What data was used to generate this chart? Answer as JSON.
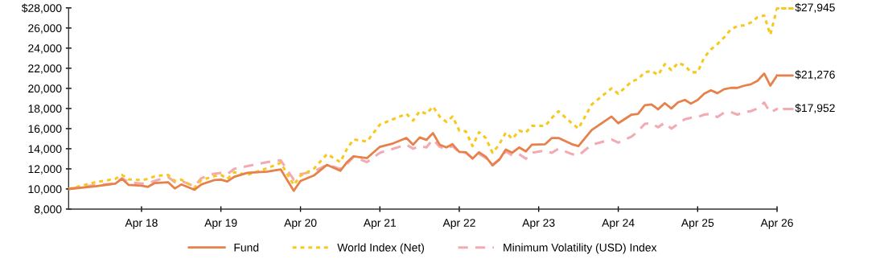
{
  "chart_data": {
    "type": "line",
    "x": [
      "2017-05",
      "2017-09",
      "2017-12",
      "2018-01",
      "2018-02",
      "2018-04",
      "2018-05",
      "2018-06",
      "2018-08",
      "2018-09",
      "2018-10",
      "2018-12",
      "2019-01",
      "2019-03",
      "2019-04",
      "2019-05",
      "2019-06",
      "2019-08",
      "2019-11",
      "2020-01",
      "2020-03",
      "2020-04",
      "2020-06",
      "2020-08",
      "2020-10",
      "2020-11",
      "2020-12",
      "2021-02",
      "2021-04",
      "2021-06",
      "2021-08",
      "2021-09",
      "2021-10",
      "2021-11",
      "2021-12",
      "2022-01",
      "2022-02",
      "2022-03",
      "2022-04",
      "2022-05",
      "2022-06",
      "2022-07",
      "2022-08",
      "2022-09",
      "2022-10",
      "2022-11",
      "2022-12",
      "2023-01",
      "2023-02",
      "2023-03",
      "2023-05",
      "2023-06",
      "2023-07",
      "2023-09",
      "2023-10",
      "2023-12",
      "2024-03",
      "2024-04",
      "2024-06",
      "2024-07",
      "2024-08",
      "2024-09",
      "2024-10",
      "2024-11",
      "2024-12",
      "2025-01",
      "2025-02",
      "2025-03",
      "2025-04",
      "2025-05",
      "2025-06",
      "2025-07",
      "2025-08",
      "2025-09",
      "2025-10",
      "2025-11",
      "2025-12",
      "2026-01",
      "2026-02",
      "2026-03",
      "2026-04"
    ],
    "series": [
      {
        "name": "Fund",
        "color": "#e8804a",
        "line_style": "solid",
        "values": [
          10000,
          10270,
          10530,
          11010,
          10400,
          10320,
          10210,
          10590,
          10670,
          10050,
          10450,
          9920,
          10450,
          10880,
          10930,
          10750,
          11200,
          11600,
          11730,
          11950,
          9820,
          10800,
          11330,
          12400,
          11810,
          12670,
          13250,
          13070,
          14190,
          14530,
          15070,
          14400,
          15120,
          14880,
          15550,
          14400,
          14130,
          14450,
          13680,
          13650,
          13010,
          13650,
          13200,
          12350,
          12880,
          13920,
          13600,
          14130,
          13730,
          14400,
          14450,
          15070,
          15070,
          14450,
          14270,
          15870,
          17200,
          16530,
          17390,
          17470,
          18320,
          18400,
          17920,
          18530,
          18000,
          18610,
          18850,
          18480,
          18850,
          19470,
          19810,
          19520,
          19920,
          20050,
          20050,
          20270,
          20400,
          20750,
          21470,
          20270,
          21276
        ]
      },
      {
        "name": "World Index (Net)",
        "color": "#f7c81e",
        "line_style": "dotted",
        "values": [
          10000,
          10670,
          11000,
          11400,
          10960,
          10880,
          11000,
          11270,
          11400,
          10800,
          10930,
          10130,
          10880,
          11270,
          11400,
          11000,
          11670,
          11400,
          12070,
          12600,
          10400,
          11330,
          12000,
          13470,
          12670,
          14000,
          14930,
          14720,
          16400,
          16930,
          17470,
          16800,
          17730,
          17470,
          18190,
          17200,
          16670,
          17200,
          15810,
          15730,
          14270,
          15650,
          15070,
          13600,
          14400,
          15600,
          14990,
          15790,
          15600,
          16270,
          16270,
          17070,
          17730,
          16530,
          16000,
          18400,
          20000,
          19470,
          20670,
          20930,
          21600,
          21730,
          21330,
          22400,
          21810,
          22530,
          22270,
          21600,
          21600,
          23070,
          23870,
          24400,
          25070,
          25870,
          26190,
          26270,
          26530,
          27070,
          27250,
          25330,
          27945
        ]
      },
      {
        "name": "Minimum Volatility (USD) Index",
        "color": "#f2aab3",
        "line_style": "dashed",
        "values": [
          10000,
          10400,
          10530,
          11070,
          10670,
          10530,
          10590,
          10800,
          11200,
          10670,
          10800,
          10270,
          11070,
          11520,
          11600,
          11470,
          12000,
          12270,
          12670,
          12850,
          10930,
          11470,
          11730,
          12400,
          12000,
          12480,
          13200,
          12670,
          13600,
          14000,
          14400,
          14000,
          14270,
          14130,
          14930,
          14190,
          14000,
          14270,
          13650,
          13600,
          13070,
          13470,
          13070,
          12400,
          12930,
          13730,
          13330,
          13470,
          13010,
          13600,
          13810,
          13600,
          14000,
          13470,
          13330,
          14400,
          14930,
          14610,
          15200,
          15730,
          16480,
          16530,
          16130,
          16590,
          16000,
          16480,
          16930,
          17070,
          17150,
          17390,
          17470,
          17150,
          17600,
          17650,
          17390,
          17650,
          17730,
          18000,
          18590,
          17600,
          17952
        ]
      }
    ],
    "xlim": [
      "2017-05",
      "2026-04"
    ],
    "xticks": [
      {
        "value": "2018-04",
        "label": "Apr 18"
      },
      {
        "value": "2019-04",
        "label": "Apr 19"
      },
      {
        "value": "2020-04",
        "label": "Apr 20"
      },
      {
        "value": "2021-04",
        "label": "Apr 21"
      },
      {
        "value": "2022-04",
        "label": "Apr 22"
      },
      {
        "value": "2023-04",
        "label": "Apr 23"
      },
      {
        "value": "2024-04",
        "label": "Apr 24"
      },
      {
        "value": "2025-04",
        "label": "Apr 25"
      },
      {
        "value": "2026-04",
        "label": "Apr 26"
      }
    ],
    "ylim": [
      8000,
      28000
    ],
    "yticks": [
      {
        "value": 8000,
        "label": "8,000"
      },
      {
        "value": 10000,
        "label": "10,000"
      },
      {
        "value": 12000,
        "label": "12,000"
      },
      {
        "value": 14000,
        "label": "14,000"
      },
      {
        "value": 16000,
        "label": "16,000"
      },
      {
        "value": 18000,
        "label": "18,000"
      },
      {
        "value": 20000,
        "label": "20,000"
      },
      {
        "value": 22000,
        "label": "22,000"
      },
      {
        "value": 24000,
        "label": "24,000"
      },
      {
        "value": 26000,
        "label": "26,000"
      },
      {
        "value": 28000,
        "label": "$28,000"
      }
    ],
    "annotations": [
      {
        "text": "$27,945",
        "x": "2026-04",
        "y": 27945
      },
      {
        "text": "$21,276",
        "x": "2026-04",
        "y": 21276
      },
      {
        "text": "$17,952",
        "x": "2026-04",
        "y": 17952
      }
    ],
    "legend": "bottom",
    "grid": false,
    "marker": "none"
  }
}
